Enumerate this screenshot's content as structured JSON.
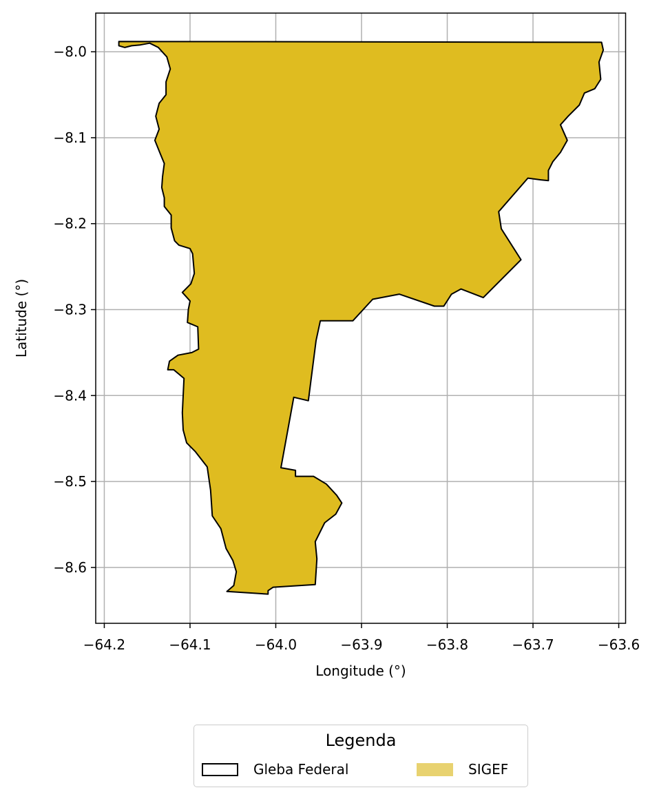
{
  "chart_data": {
    "type": "map",
    "xlabel": "Longitude (°)",
    "ylabel": "Latitude (°)",
    "xlim": [
      -64.21,
      -63.592
    ],
    "ylim": [
      -8.665,
      -7.955
    ],
    "x_ticks": [
      -64.2,
      -64.1,
      -64.0,
      -63.9,
      -63.8,
      -63.7,
      -63.6
    ],
    "x_tick_labels": [
      "−64.2",
      "−64.1",
      "−64.0",
      "−63.9",
      "−63.8",
      "−63.7",
      "−63.6"
    ],
    "y_ticks": [
      -8.0,
      -8.1,
      -8.2,
      -8.3,
      -8.4,
      -8.5,
      -8.6
    ],
    "y_tick_labels": [
      "−8.0",
      "−8.1",
      "−8.2",
      "−8.3",
      "−8.4",
      "−8.5",
      "−8.6"
    ],
    "grid": true,
    "colors": {
      "sigef_fill": "#DFBC20",
      "gleba_edge": "#000000",
      "legend_sigef_swatch": "#E8D270",
      "grid": "#b0b0b0"
    },
    "polygon": [
      [
        -64.183,
        -7.988
      ],
      [
        -63.62,
        -7.989
      ],
      [
        -63.618,
        -7.998
      ],
      [
        -63.623,
        -8.012
      ],
      [
        -63.621,
        -8.032
      ],
      [
        -63.628,
        -8.043
      ],
      [
        -63.64,
        -8.048
      ],
      [
        -63.646,
        -8.062
      ],
      [
        -63.659,
        -8.075
      ],
      [
        -63.668,
        -8.085
      ],
      [
        -63.66,
        -8.103
      ],
      [
        -63.668,
        -8.117
      ],
      [
        -63.677,
        -8.128
      ],
      [
        -63.682,
        -8.138
      ],
      [
        -63.682,
        -8.15
      ],
      [
        -63.691,
        -8.149
      ],
      [
        -63.706,
        -8.147
      ],
      [
        -63.74,
        -8.186
      ],
      [
        -63.737,
        -8.206
      ],
      [
        -63.714,
        -8.242
      ],
      [
        -63.758,
        -8.286
      ],
      [
        -63.784,
        -8.276
      ],
      [
        -63.795,
        -8.282
      ],
      [
        -63.804,
        -8.296
      ],
      [
        -63.815,
        -8.296
      ],
      [
        -63.856,
        -8.282
      ],
      [
        -63.887,
        -8.288
      ],
      [
        -63.91,
        -8.313
      ],
      [
        -63.948,
        -8.313
      ],
      [
        -63.953,
        -8.336
      ],
      [
        -63.962,
        -8.406
      ],
      [
        -63.979,
        -8.402
      ],
      [
        -63.994,
        -8.484
      ],
      [
        -63.977,
        -8.487
      ],
      [
        -63.977,
        -8.494
      ],
      [
        -63.956,
        -8.494
      ],
      [
        -63.941,
        -8.503
      ],
      [
        -63.929,
        -8.516
      ],
      [
        -63.923,
        -8.525
      ],
      [
        -63.93,
        -8.538
      ],
      [
        -63.943,
        -8.548
      ],
      [
        -63.954,
        -8.57
      ],
      [
        -63.952,
        -8.59
      ],
      [
        -63.954,
        -8.62
      ],
      [
        -64.003,
        -8.623
      ],
      [
        -64.009,
        -8.627
      ],
      [
        -64.009,
        -8.631
      ],
      [
        -64.057,
        -8.628
      ],
      [
        -64.049,
        -8.621
      ],
      [
        -64.046,
        -8.605
      ],
      [
        -64.05,
        -8.592
      ],
      [
        -64.058,
        -8.578
      ],
      [
        -64.064,
        -8.555
      ],
      [
        -64.074,
        -8.54
      ],
      [
        -64.076,
        -8.51
      ],
      [
        -64.08,
        -8.483
      ],
      [
        -64.094,
        -8.465
      ],
      [
        -64.104,
        -8.455
      ],
      [
        -64.108,
        -8.44
      ],
      [
        -64.109,
        -8.42
      ],
      [
        -64.108,
        -8.4
      ],
      [
        -64.107,
        -8.38
      ],
      [
        -64.119,
        -8.37
      ],
      [
        -64.126,
        -8.37
      ],
      [
        -64.124,
        -8.36
      ],
      [
        -64.114,
        -8.353
      ],
      [
        -64.098,
        -8.35
      ],
      [
        -64.09,
        -8.346
      ],
      [
        -64.091,
        -8.32
      ],
      [
        -64.103,
        -8.315
      ],
      [
        -64.102,
        -8.3
      ],
      [
        -64.1,
        -8.29
      ],
      [
        -64.109,
        -8.28
      ],
      [
        -64.099,
        -8.27
      ],
      [
        -64.095,
        -8.258
      ],
      [
        -64.097,
        -8.235
      ],
      [
        -64.1,
        -8.229
      ],
      [
        -64.113,
        -8.225
      ],
      [
        -64.118,
        -8.22
      ],
      [
        -64.122,
        -8.205
      ],
      [
        -64.122,
        -8.19
      ],
      [
        -64.13,
        -8.18
      ],
      [
        -64.13,
        -8.17
      ],
      [
        -64.133,
        -8.158
      ],
      [
        -64.132,
        -8.145
      ],
      [
        -64.13,
        -8.13
      ],
      [
        -64.135,
        -8.118
      ],
      [
        -64.141,
        -8.103
      ],
      [
        -64.136,
        -8.09
      ],
      [
        -64.14,
        -8.075
      ],
      [
        -64.136,
        -8.06
      ],
      [
        -64.128,
        -8.05
      ],
      [
        -64.128,
        -8.035
      ],
      [
        -64.123,
        -8.02
      ],
      [
        -64.127,
        -8.006
      ],
      [
        -64.137,
        -7.995
      ],
      [
        -64.147,
        -7.99
      ],
      [
        -64.158,
        -7.992
      ],
      [
        -64.168,
        -7.993
      ],
      [
        -64.176,
        -7.995
      ],
      [
        -64.183,
        -7.993
      ]
    ]
  },
  "legend": {
    "title": "Legenda",
    "items": [
      {
        "label": "Gleba Federal"
      },
      {
        "label": "SIGEF"
      }
    ]
  }
}
